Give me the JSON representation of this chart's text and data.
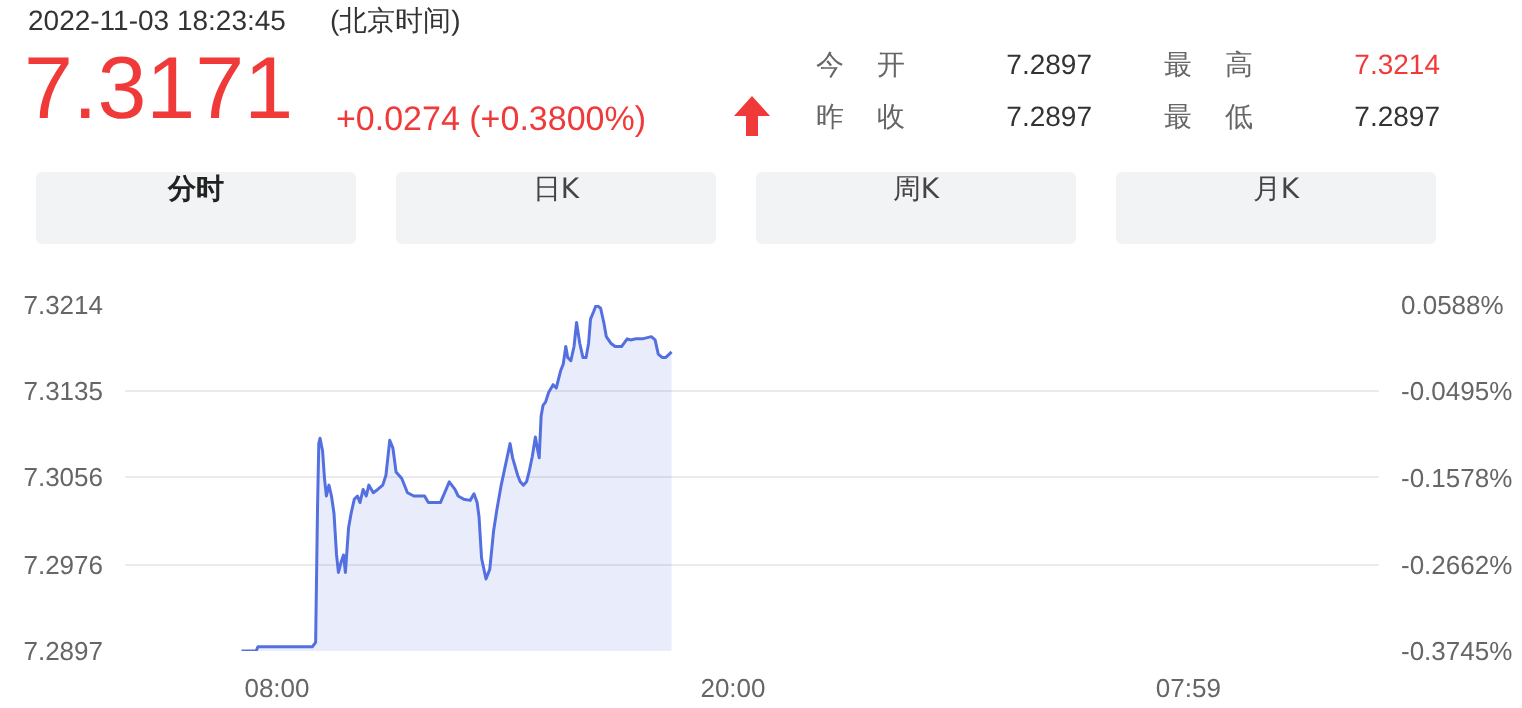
{
  "chart_data": {
    "type": "area",
    "title": "2022-11-03 18:23:45",
    "subtitle": "(北京时间)",
    "annotations": [
      "7.3171",
      "+0.0274 (+0.3800%)",
      "今 开",
      "7.2897",
      "昨 收",
      "7.2897",
      "最 高",
      "7.3214",
      "最 低",
      "7.2897",
      "分时",
      "日K",
      "周K",
      "月K"
    ],
    "xlim": [
      "2022-11-03T04:00",
      "2022-11-04T13:00"
    ],
    "xticks": [
      {
        "value": "2022-11-03T08:00",
        "label": "08:00"
      },
      {
        "value": "2022-11-03T20:00",
        "label": "20:00"
      },
      {
        "value": "2022-11-04T07:59",
        "label": "07:59"
      }
    ],
    "ylim": [
      7.2897,
      7.3214
    ],
    "yticks": [
      7.2897,
      7.2976,
      7.3056,
      7.3135,
      7.3214
    ],
    "y2lim": [
      -0.3745,
      0.0588
    ],
    "y2ticks": [
      {
        "value": -0.3745,
        "label": "-0.3745%"
      },
      {
        "value": -0.2662,
        "label": "-0.2662%"
      },
      {
        "value": -0.1578,
        "label": "-0.1578%"
      },
      {
        "value": -0.0495,
        "label": "-0.0495%"
      },
      {
        "value": 0.0588,
        "label": "0.0588%"
      }
    ],
    "grid": "y",
    "series": [
      {
        "color": "#5470e0",
        "x": [
          "2022-11-03T07:04",
          "2022-11-03T07:27",
          "2022-11-03T07:30",
          "2022-11-03T08:56",
          "2022-11-03T09:01",
          "2022-11-03T09:04",
          "2022-11-03T09:06",
          "2022-11-03T09:08",
          "2022-11-03T09:12",
          "2022-11-03T09:15",
          "2022-11-03T09:18",
          "2022-11-03T09:22",
          "2022-11-03T09:26",
          "2022-11-03T09:30",
          "2022-11-03T09:34",
          "2022-11-03T09:37",
          "2022-11-03T09:41",
          "2022-11-03T09:45",
          "2022-11-03T09:48",
          "2022-11-03T09:53",
          "2022-11-03T09:57",
          "2022-11-03T10:02",
          "2022-11-03T10:07",
          "2022-11-03T10:11",
          "2022-11-03T10:16",
          "2022-11-03T10:21",
          "2022-11-03T10:25",
          "2022-11-03T10:32",
          "2022-11-03T10:39",
          "2022-11-03T10:47",
          "2022-11-03T10:52",
          "2022-11-03T10:55",
          "2022-11-03T10:58",
          "2022-11-03T11:03",
          "2022-11-03T11:08",
          "2022-11-03T11:17",
          "2022-11-03T11:26",
          "2022-11-03T11:36",
          "2022-11-03T11:53",
          "2022-11-03T11:59",
          "2022-11-03T12:18",
          "2022-11-03T12:27",
          "2022-11-03T12:32",
          "2022-11-03T12:41",
          "2022-11-03T12:46",
          "2022-11-03T12:55",
          "2022-11-03T13:05",
          "2022-11-03T13:11",
          "2022-11-03T13:16",
          "2022-11-03T13:19",
          "2022-11-03T13:23",
          "2022-11-03T13:30",
          "2022-11-03T13:36",
          "2022-11-03T13:42",
          "2022-11-03T13:47",
          "2022-11-03T13:54",
          "2022-11-03T14:01",
          "2022-11-03T14:08",
          "2022-11-03T14:12",
          "2022-11-03T14:20",
          "2022-11-03T14:24",
          "2022-11-03T14:29",
          "2022-11-03T14:34",
          "2022-11-03T14:38",
          "2022-11-03T14:43",
          "2022-11-03T14:48",
          "2022-11-03T14:51",
          "2022-11-03T14:54",
          "2022-11-03T14:57",
          "2022-11-03T15:00",
          "2022-11-03T15:04",
          "2022-11-03T15:09",
          "2022-11-03T15:16",
          "2022-11-03T15:21",
          "2022-11-03T15:28",
          "2022-11-03T15:32",
          "2022-11-03T15:36",
          "2022-11-03T15:39",
          "2022-11-03T15:44",
          "2022-11-03T15:49",
          "2022-11-03T15:53",
          "2022-11-03T15:58",
          "2022-11-03T16:03",
          "2022-11-03T16:08",
          "2022-11-03T16:12",
          "2022-11-03T16:15",
          "2022-11-03T16:20",
          "2022-11-03T16:24",
          "2022-11-03T16:31",
          "2022-11-03T16:36",
          "2022-11-03T16:40",
          "2022-11-03T16:47",
          "2022-11-03T16:54",
          "2022-11-03T17:04",
          "2022-11-03T17:08",
          "2022-11-03T17:13",
          "2022-11-03T17:18",
          "2022-11-03T17:27",
          "2022-11-03T17:37",
          "2022-11-03T17:51",
          "2022-11-03T17:57",
          "2022-11-03T18:02",
          "2022-11-03T18:08",
          "2022-11-03T18:14",
          "2022-11-03T18:23"
        ],
        "values": [
          7.2897,
          7.2897,
          7.2901,
          7.2901,
          7.2905,
          7.3029,
          7.3087,
          7.3092,
          7.308,
          7.3055,
          7.3039,
          7.3049,
          7.3039,
          7.3023,
          7.2985,
          7.2969,
          7.2978,
          7.2985,
          7.2969,
          7.301,
          7.3023,
          7.3036,
          7.3039,
          7.3033,
          7.3045,
          7.3039,
          7.3049,
          7.3042,
          7.3045,
          7.3049,
          7.3058,
          7.3074,
          7.309,
          7.3083,
          7.3061,
          7.3055,
          7.3042,
          7.3039,
          7.3039,
          7.3033,
          7.3033,
          7.3045,
          7.3052,
          7.3045,
          7.3039,
          7.3036,
          7.3035,
          7.3041,
          7.3033,
          7.302,
          7.2982,
          7.2963,
          7.2972,
          7.3007,
          7.3026,
          7.3049,
          7.3068,
          7.3087,
          7.3074,
          7.3058,
          7.3052,
          7.3049,
          7.3052,
          7.3061,
          7.3075,
          7.3093,
          7.3083,
          7.3074,
          7.3112,
          7.3122,
          7.3125,
          7.3134,
          7.3141,
          7.3138,
          7.3154,
          7.316,
          7.3176,
          7.3166,
          7.3163,
          7.3176,
          7.3198,
          7.3179,
          7.3166,
          7.3166,
          7.3179,
          7.3201,
          7.3208,
          7.3214,
          7.3211,
          7.3198,
          7.3185,
          7.3179,
          7.3176,
          7.3176,
          7.3179,
          7.3183,
          7.3182,
          7.3183,
          7.3183,
          7.3185,
          7.3182,
          7.3169,
          7.3166,
          7.3166,
          7.3171
        ]
      }
    ]
  }
}
